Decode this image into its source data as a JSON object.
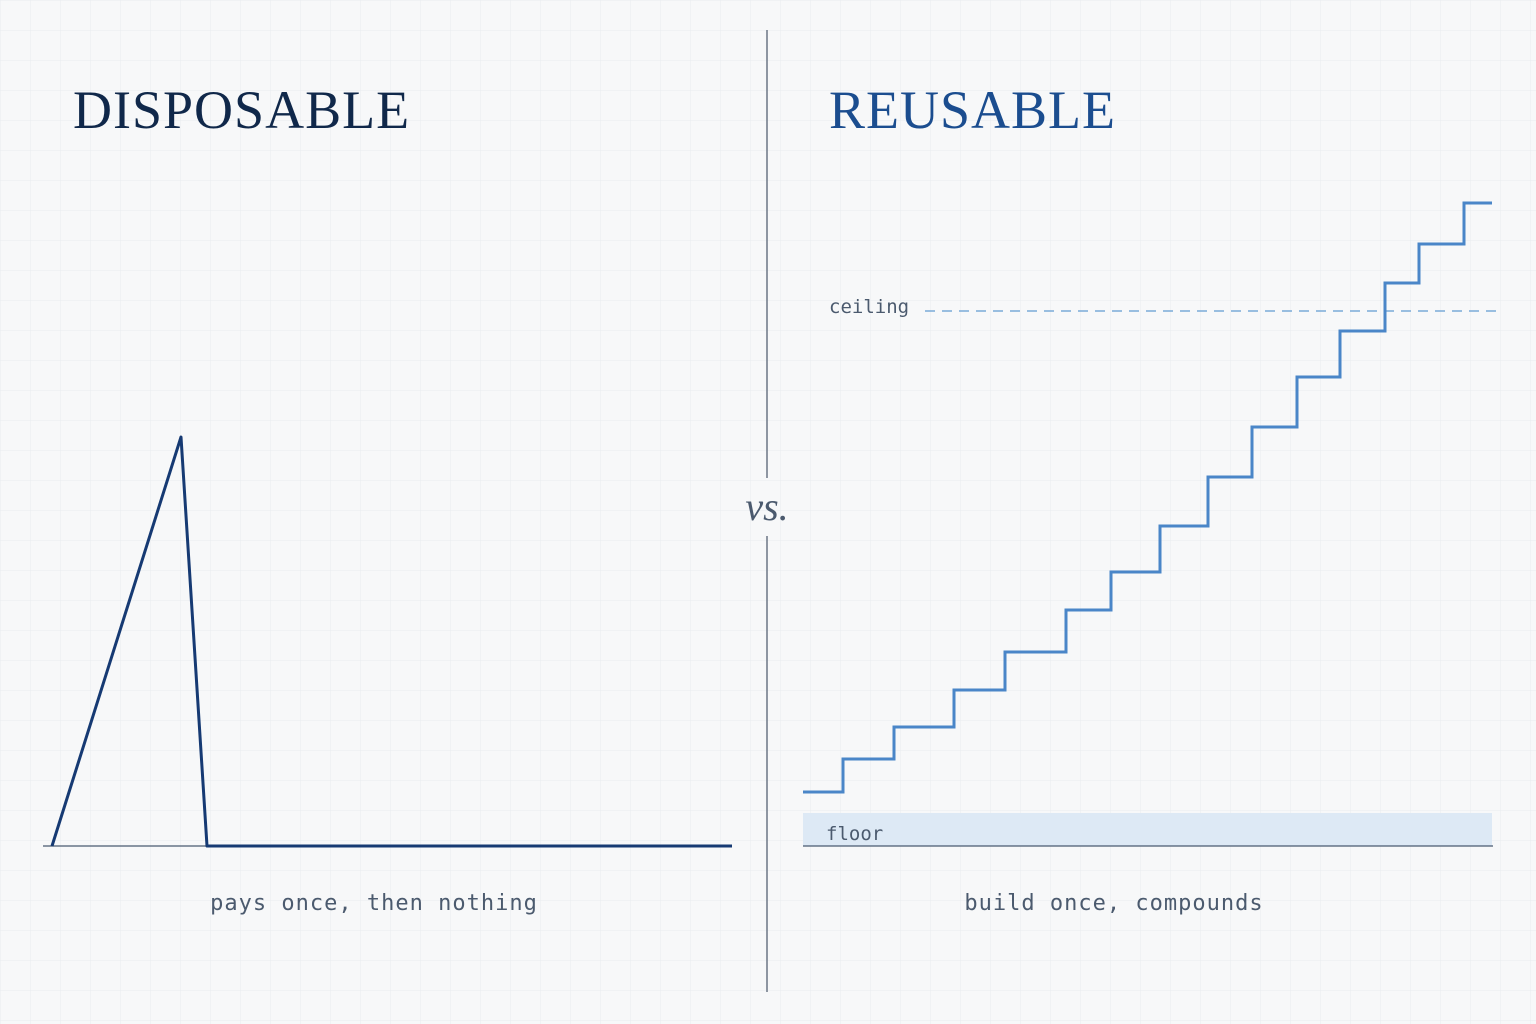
{
  "left": {
    "title": "DISPOSABLE",
    "caption": "pays once, then nothing"
  },
  "right": {
    "title": "REUSABLE",
    "caption": "build once, compounds",
    "ceiling_label": "ceiling",
    "floor_label": "floor"
  },
  "divider_label": "vs."
}
